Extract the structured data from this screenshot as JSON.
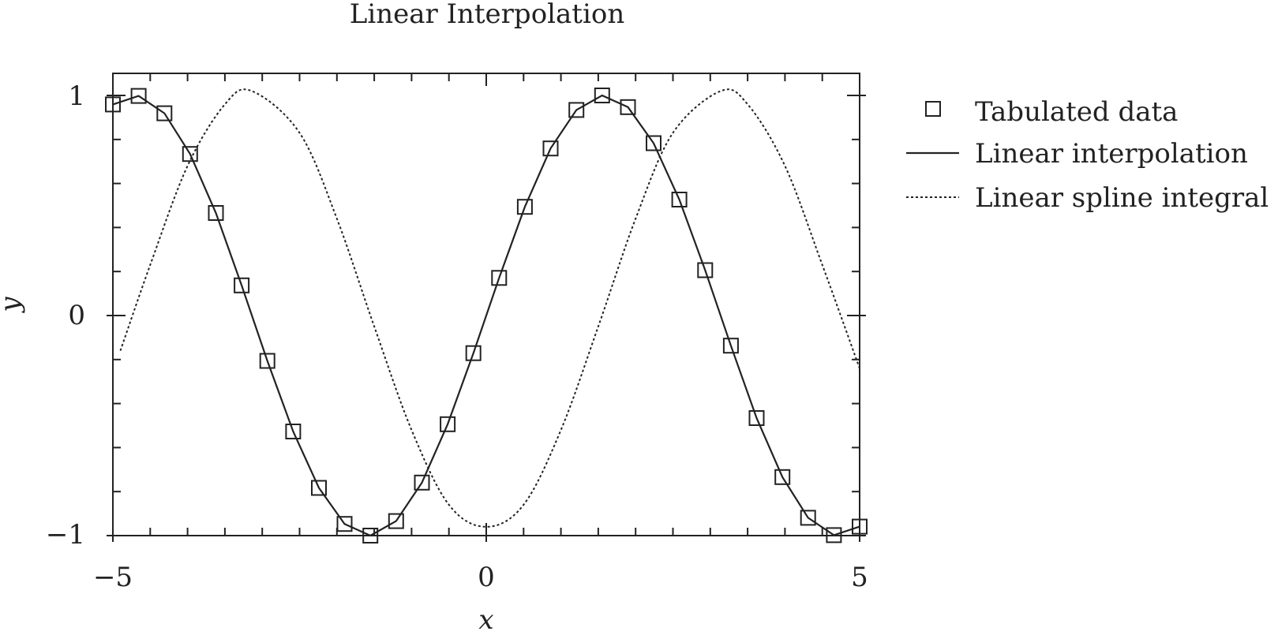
{
  "chart_data": {
    "type": "line",
    "title": "Linear Interpolation",
    "xlabel": "x",
    "ylabel": "y",
    "xlim": [
      -5,
      5
    ],
    "ylim": [
      -1,
      1.1
    ],
    "x_ticks": [
      -5,
      0,
      5
    ],
    "x_tick_labels": [
      "−5",
      "0",
      "5"
    ],
    "y_ticks": [
      -1,
      0,
      1
    ],
    "y_tick_labels": [
      "−1",
      "0",
      "1"
    ],
    "minor_x_step": 0.5,
    "minor_y_step": 0.2,
    "legend_position": "right, outside plot",
    "series": [
      {
        "name": "Tabulated data",
        "style": "square markers",
        "x": [
          -5.0,
          -4.655,
          -4.31,
          -3.966,
          -3.621,
          -3.276,
          -2.931,
          -2.586,
          -2.241,
          -1.897,
          -1.552,
          -1.207,
          -0.862,
          -0.517,
          -0.172,
          0.172,
          0.517,
          0.862,
          1.207,
          1.552,
          1.897,
          2.241,
          2.586,
          2.931,
          3.276,
          3.621,
          3.966,
          4.31,
          4.655,
          5.0
        ],
        "y": [
          0.959,
          0.998,
          0.919,
          0.734,
          0.466,
          0.137,
          -0.206,
          -0.527,
          -0.783,
          -0.947,
          -1.0,
          -0.934,
          -0.759,
          -0.494,
          -0.171,
          0.171,
          0.494,
          0.759,
          0.934,
          1.0,
          0.947,
          0.783,
          0.527,
          0.206,
          -0.137,
          -0.466,
          -0.734,
          -0.919,
          -0.998,
          -0.959
        ]
      },
      {
        "name": "Linear interpolation",
        "style": "solid line",
        "x": [
          -5.0,
          -4.655,
          -4.31,
          -3.966,
          -3.621,
          -3.276,
          -2.931,
          -2.586,
          -2.241,
          -1.897,
          -1.552,
          -1.207,
          -0.862,
          -0.517,
          -0.172,
          0.172,
          0.517,
          0.862,
          1.207,
          1.552,
          1.897,
          2.241,
          2.586,
          2.931,
          3.276,
          3.621,
          3.966,
          4.31,
          4.655,
          5.0
        ],
        "y": [
          0.959,
          0.998,
          0.919,
          0.734,
          0.466,
          0.137,
          -0.206,
          -0.527,
          -0.783,
          -0.947,
          -1.0,
          -0.934,
          -0.759,
          -0.494,
          -0.171,
          0.171,
          0.494,
          0.759,
          0.934,
          1.0,
          0.947,
          0.783,
          0.527,
          0.206,
          -0.137,
          -0.466,
          -0.734,
          -0.919,
          -0.998,
          -0.959
        ]
      },
      {
        "name": "Linear spline integral",
        "style": "dotted line",
        "x": [
          -4.9,
          -4.5,
          -4.0,
          -3.5,
          -3.14,
          -2.5,
          -2.0,
          -1.5,
          -1.0,
          -0.5,
          0.0,
          0.5,
          1.0,
          1.5,
          2.0,
          2.5,
          3.14,
          3.5,
          4.0,
          4.5,
          5.0
        ],
        "y": [
          -0.16,
          0.23,
          0.68,
          0.96,
          1.02,
          0.83,
          0.44,
          -0.05,
          -0.52,
          -0.86,
          -0.96,
          -0.86,
          -0.52,
          -0.05,
          0.44,
          0.83,
          1.02,
          0.96,
          0.68,
          0.23,
          -0.24
        ]
      }
    ]
  }
}
